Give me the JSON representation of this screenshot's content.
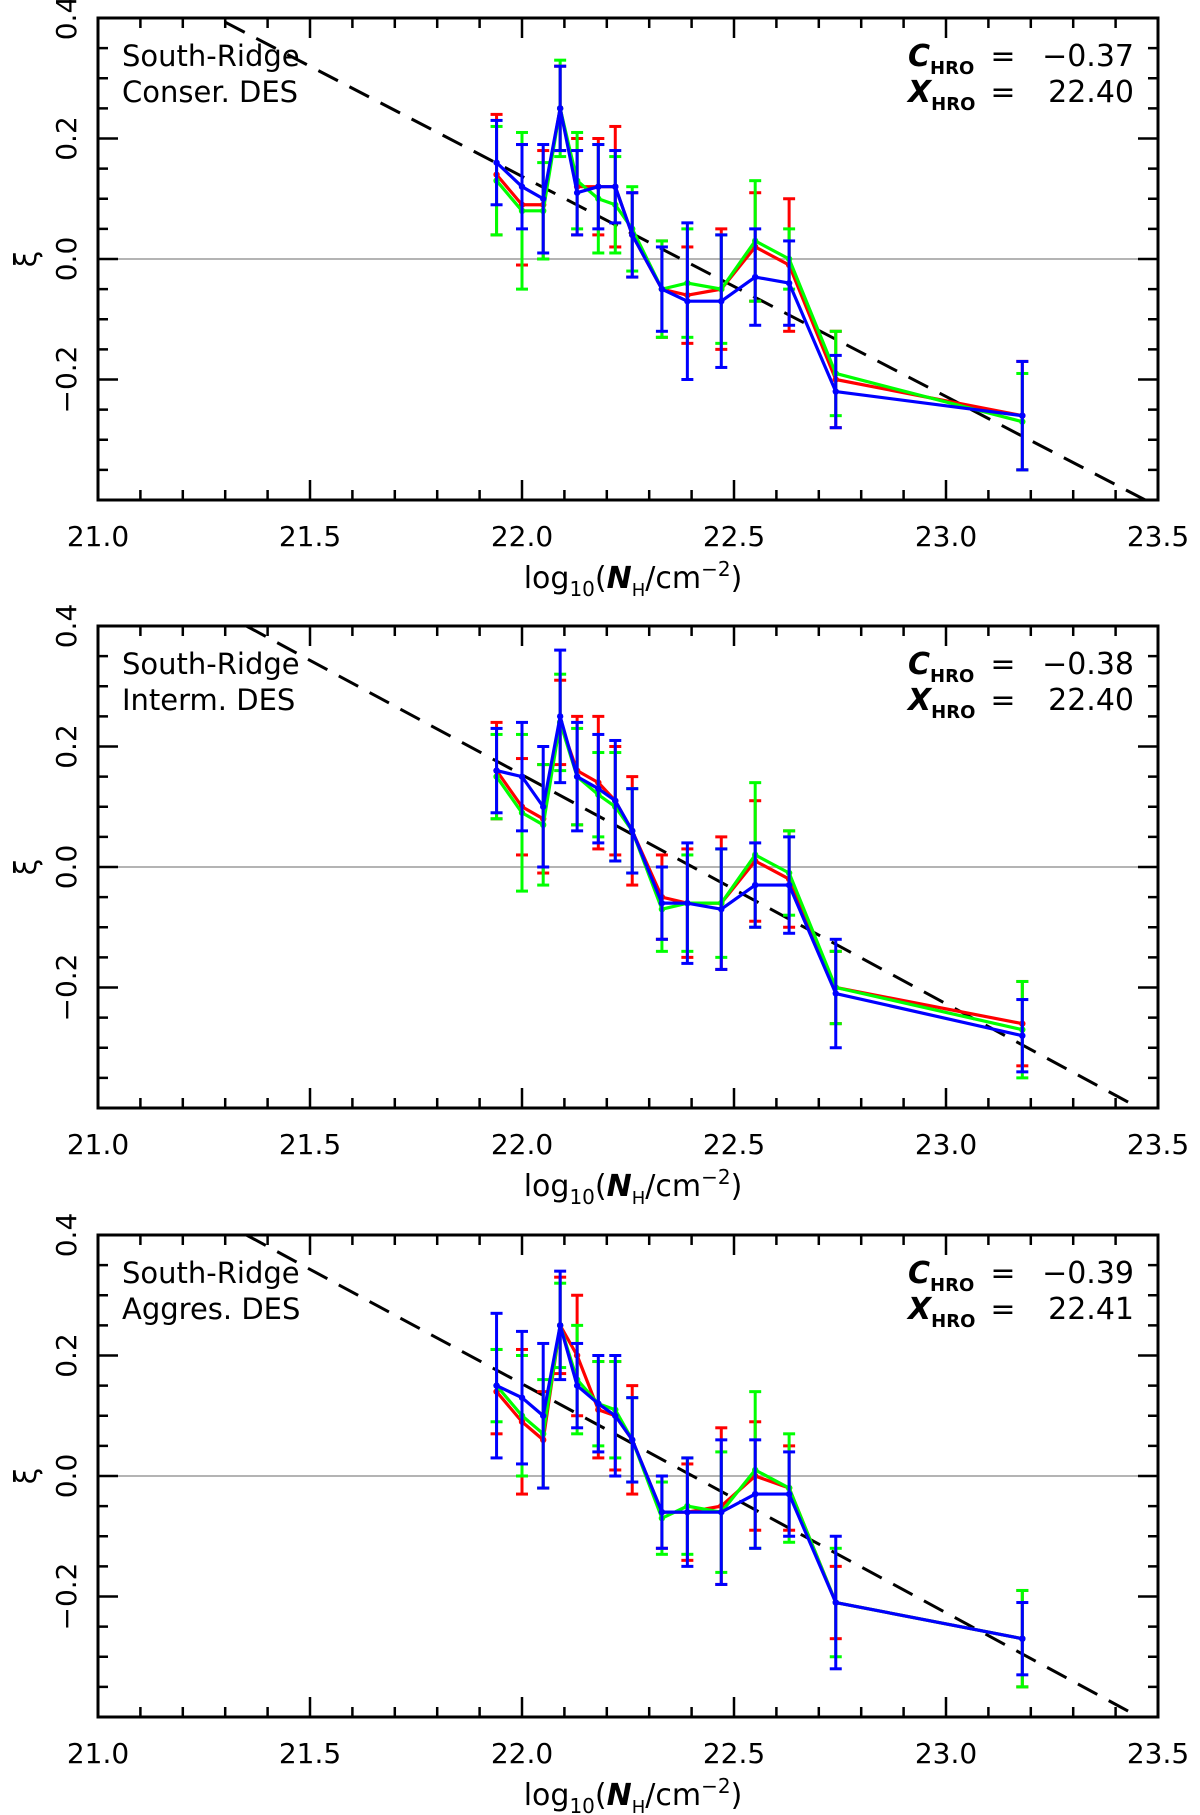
{
  "chart_data": [
    {
      "type": "line",
      "title": "",
      "annotation": [
        "South-Ridge",
        "Conser. DES"
      ],
      "coefficients": [
        {
          "symbol": "C",
          "subscript": "HRO",
          "equals": "=",
          "value": "−0.37"
        },
        {
          "symbol": "X",
          "subscript": "HRO",
          "equals": "=",
          "value": "22.40"
        }
      ],
      "xlabel": {
        "prefix": "log",
        "sub": "10",
        "open": "(",
        "var": "N",
        "var_sub": "H",
        "mid": "/cm",
        "sup": "−2",
        "close": ")"
      },
      "ylabel": "ξ",
      "xlim": [
        21.0,
        23.5
      ],
      "ylim": [
        -0.4,
        0.4
      ],
      "xticks": [
        "21.0",
        "21.5",
        "22.0",
        "22.5",
        "23.0",
        "23.5"
      ],
      "yticks": [
        "0.4",
        "0.2",
        "0.0",
        "−0.2"
      ],
      "x": [
        21.94,
        22.0,
        22.05,
        22.09,
        22.13,
        22.18,
        22.22,
        22.26,
        22.33,
        22.39,
        22.47,
        22.55,
        22.63,
        22.74,
        23.18
      ],
      "reference_line": {
        "y": 0.0,
        "color": "#b4b4b4"
      },
      "fit_line": {
        "x": [
          21.3,
          23.5
        ],
        "y": [
          0.393,
          -0.411
        ],
        "style": "dashed",
        "color": "#000000"
      },
      "series": [
        {
          "name": "red",
          "color": "#ff0000",
          "values": [
            0.14,
            0.09,
            0.09,
            0.25,
            0.12,
            0.12,
            0.12,
            0.04,
            -0.05,
            -0.06,
            -0.05,
            0.02,
            -0.01,
            -0.2,
            -0.26
          ],
          "errors": [
            0.1,
            0.1,
            0.09,
            0.07,
            0.08,
            0.08,
            0.1,
            0.07,
            0.08,
            0.08,
            0.1,
            0.09,
            0.11,
            0.08,
            0.09
          ]
        },
        {
          "name": "green",
          "color": "#00ff00",
          "values": [
            0.13,
            0.08,
            0.08,
            0.25,
            0.13,
            0.1,
            0.09,
            0.05,
            -0.05,
            -0.04,
            -0.05,
            0.03,
            0.0,
            -0.19,
            -0.27
          ],
          "errors": [
            0.09,
            0.13,
            0.08,
            0.08,
            0.08,
            0.09,
            0.08,
            0.07,
            0.08,
            0.09,
            0.09,
            0.1,
            0.05,
            0.07,
            0.08
          ]
        },
        {
          "name": "blue",
          "color": "#0000ff",
          "values": [
            0.16,
            0.12,
            0.1,
            0.25,
            0.11,
            0.12,
            0.12,
            0.04,
            -0.05,
            -0.07,
            -0.07,
            -0.03,
            -0.04,
            -0.22,
            -0.26
          ],
          "errors": [
            0.07,
            0.07,
            0.09,
            0.07,
            0.07,
            0.07,
            0.06,
            0.07,
            0.07,
            0.13,
            0.11,
            0.08,
            0.07,
            0.06,
            0.09
          ]
        }
      ]
    },
    {
      "type": "line",
      "title": "",
      "annotation": [
        "South-Ridge",
        "Interm. DES"
      ],
      "coefficients": [
        {
          "symbol": "C",
          "subscript": "HRO",
          "equals": "=",
          "value": "−0.38"
        },
        {
          "symbol": "X",
          "subscript": "HRO",
          "equals": "=",
          "value": "22.40"
        }
      ],
      "xlabel": {
        "prefix": "log",
        "sub": "10",
        "open": "(",
        "var": "N",
        "var_sub": "H",
        "mid": "/cm",
        "sup": "−2",
        "close": ")"
      },
      "ylabel": "ξ",
      "xlim": [
        21.0,
        23.5
      ],
      "ylim": [
        -0.4,
        0.4
      ],
      "xticks": [
        "21.0",
        "21.5",
        "22.0",
        "22.5",
        "23.0",
        "23.5"
      ],
      "yticks": [
        "0.4",
        "0.2",
        "0.0",
        "−0.2"
      ],
      "x": [
        21.94,
        22.0,
        22.05,
        22.09,
        22.13,
        22.18,
        22.22,
        22.26,
        22.33,
        22.39,
        22.47,
        22.55,
        22.63,
        22.74,
        23.18
      ],
      "reference_line": {
        "y": 0.0,
        "color": "#b4b4b4"
      },
      "fit_line": {
        "x": [
          21.35,
          23.5
        ],
        "y": [
          0.4,
          -0.417
        ],
        "style": "dashed",
        "color": "#000000"
      },
      "series": [
        {
          "name": "red",
          "color": "#ff0000",
          "values": [
            0.16,
            0.1,
            0.08,
            0.24,
            0.16,
            0.14,
            0.11,
            0.06,
            -0.05,
            -0.06,
            -0.06,
            0.01,
            -0.02,
            -0.2,
            -0.26
          ],
          "errors": [
            0.08,
            0.08,
            0.09,
            0.07,
            0.09,
            0.11,
            0.09,
            0.09,
            0.07,
            0.09,
            0.11,
            0.1,
            0.08,
            0.06,
            0.07
          ]
        },
        {
          "name": "green",
          "color": "#00ff00",
          "values": [
            0.15,
            0.09,
            0.07,
            0.24,
            0.15,
            0.12,
            0.1,
            0.06,
            -0.07,
            -0.06,
            -0.06,
            0.02,
            -0.01,
            -0.2,
            -0.27
          ],
          "errors": [
            0.07,
            0.13,
            0.1,
            0.08,
            0.08,
            0.07,
            0.09,
            0.07,
            0.07,
            0.08,
            0.09,
            0.12,
            0.07,
            0.06,
            0.08
          ]
        },
        {
          "name": "blue",
          "color": "#0000ff",
          "values": [
            0.16,
            0.15,
            0.1,
            0.25,
            0.15,
            0.13,
            0.11,
            0.06,
            -0.06,
            -0.06,
            -0.07,
            -0.03,
            -0.03,
            -0.21,
            -0.28
          ],
          "errors": [
            0.07,
            0.09,
            0.1,
            0.11,
            0.09,
            0.09,
            0.1,
            0.07,
            0.06,
            0.1,
            0.1,
            0.07,
            0.08,
            0.09,
            0.06
          ]
        }
      ]
    },
    {
      "type": "line",
      "title": "",
      "annotation": [
        "South-Ridge",
        "Aggres. DES"
      ],
      "coefficients": [
        {
          "symbol": "C",
          "subscript": "HRO",
          "equals": "=",
          "value": "−0.39"
        },
        {
          "symbol": "X",
          "subscript": "HRO",
          "equals": "=",
          "value": "22.41"
        }
      ],
      "xlabel": {
        "prefix": "log",
        "sub": "10",
        "open": "(",
        "var": "N",
        "var_sub": "H",
        "mid": "/cm",
        "sup": "−2",
        "close": ")"
      },
      "ylabel": "ξ",
      "xlim": [
        21.0,
        23.5
      ],
      "ylim": [
        -0.4,
        0.4
      ],
      "xticks": [
        "21.0",
        "21.5",
        "22.0",
        "22.5",
        "23.0",
        "23.5"
      ],
      "yticks": [
        "0.4",
        "0.2",
        "0.0",
        "−0.2"
      ],
      "x": [
        21.94,
        22.0,
        22.05,
        22.09,
        22.13,
        22.18,
        22.22,
        22.26,
        22.33,
        22.39,
        22.47,
        22.55,
        22.63,
        22.74,
        23.18
      ],
      "reference_line": {
        "y": 0.0,
        "color": "#b4b4b4"
      },
      "fit_line": {
        "x": [
          21.35,
          23.5
        ],
        "y": [
          0.4,
          -0.417
        ],
        "style": "dashed",
        "color": "#000000"
      },
      "series": [
        {
          "name": "red",
          "color": "#ff0000",
          "values": [
            0.14,
            0.09,
            0.06,
            0.25,
            0.2,
            0.11,
            0.1,
            0.06,
            -0.06,
            -0.06,
            -0.05,
            0.0,
            -0.02,
            -0.21,
            -0.27
          ],
          "errors": [
            0.07,
            0.12,
            0.08,
            0.08,
            0.1,
            0.08,
            0.09,
            0.09,
            0.06,
            0.08,
            0.13,
            0.09,
            0.07,
            0.06,
            0.08
          ]
        },
        {
          "name": "green",
          "color": "#00ff00",
          "values": [
            0.15,
            0.1,
            0.07,
            0.25,
            0.16,
            0.12,
            0.11,
            0.06,
            -0.07,
            -0.05,
            -0.06,
            0.01,
            -0.02,
            -0.21,
            -0.27
          ],
          "errors": [
            0.06,
            0.1,
            0.09,
            0.07,
            0.09,
            0.07,
            0.08,
            0.07,
            0.06,
            0.08,
            0.1,
            0.13,
            0.09,
            0.09,
            0.08
          ]
        },
        {
          "name": "blue",
          "color": "#0000ff",
          "values": [
            0.15,
            0.13,
            0.1,
            0.25,
            0.15,
            0.12,
            0.1,
            0.06,
            -0.06,
            -0.06,
            -0.06,
            -0.03,
            -0.03,
            -0.21,
            -0.27
          ],
          "errors": [
            0.12,
            0.11,
            0.12,
            0.09,
            0.07,
            0.08,
            0.1,
            0.07,
            0.06,
            0.09,
            0.12,
            0.09,
            0.07,
            0.11,
            0.06
          ]
        }
      ]
    }
  ]
}
